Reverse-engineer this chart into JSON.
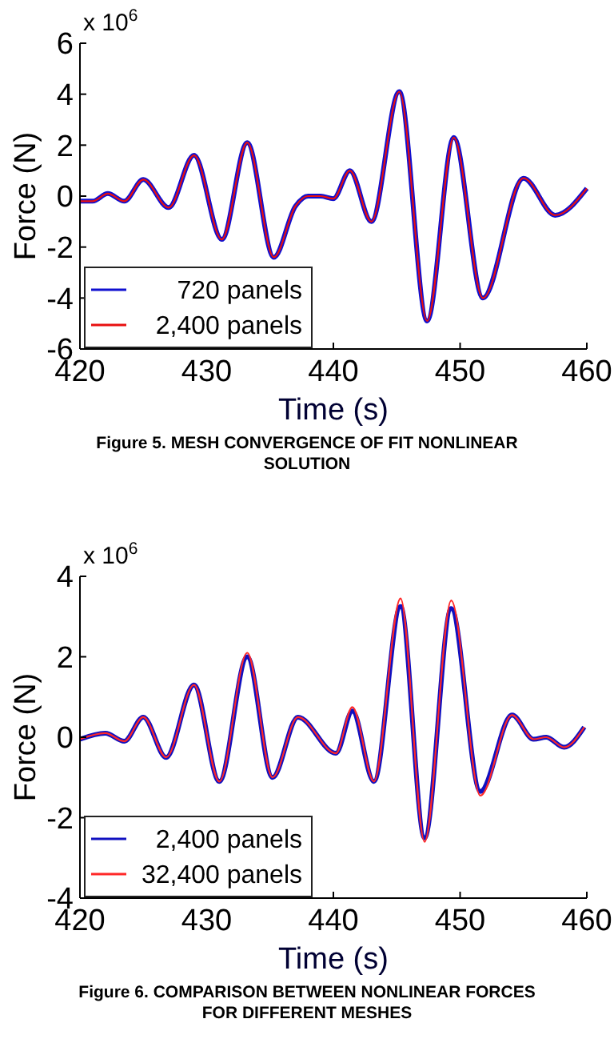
{
  "chart_data": [
    {
      "type": "line",
      "title": "Figure 5. MESH CONVERGENCE OF FIT NONLINEAR SOLUTION",
      "xlabel": "Time (s)",
      "ylabel": "Force (N)",
      "annotations": [
        "x 10$^{6}$"
      ],
      "xlim": [
        420,
        460
      ],
      "xticks": [
        420,
        430,
        440,
        450,
        460
      ],
      "ylim": [
        -6,
        6
      ],
      "yticks": [
        -6,
        -4,
        -2,
        0,
        2,
        4,
        6
      ],
      "legend": "bottom left",
      "grid": false,
      "line_style": "solid",
      "series": [
        {
          "name": "720 panels",
          "color": "#1010d0",
          "x": [
            420,
            421,
            422.2,
            423.5,
            425,
            427,
            429,
            431.2,
            433.2,
            435.3,
            437,
            438,
            439,
            440,
            441.3,
            443,
            445.2,
            447.4,
            449.5,
            451.8,
            455,
            457.5,
            460
          ],
          "values": [
            -0.2,
            -0.2,
            0.1,
            -0.2,
            0.65,
            -0.45,
            1.6,
            -1.7,
            2.1,
            -2.4,
            -0.4,
            0,
            0,
            -0.1,
            1.0,
            -1.0,
            4.1,
            -4.9,
            2.3,
            -4.0,
            0.7,
            -0.75,
            0.3
          ]
        },
        {
          "name": "2,400 panels",
          "color": "#e81010",
          "x": [
            420,
            421,
            422.2,
            423.5,
            425,
            427,
            429,
            431.2,
            433.2,
            435.3,
            437,
            438,
            439,
            440,
            441.3,
            443,
            445.2,
            447.4,
            449.5,
            451.8,
            455,
            457.5,
            460
          ],
          "values": [
            -0.2,
            -0.2,
            0.1,
            -0.2,
            0.65,
            -0.45,
            1.6,
            -1.7,
            2.1,
            -2.4,
            -0.4,
            0,
            0,
            -0.1,
            1.0,
            -1.0,
            4.1,
            -4.9,
            2.3,
            -4.0,
            0.7,
            -0.75,
            0.3
          ]
        }
      ]
    },
    {
      "type": "line",
      "title": "Figure 6. COMPARISON BETWEEN NONLINEAR FORCES FOR DIFFERENT MESHES",
      "xlabel": "Time (s)",
      "ylabel": "Force (N)",
      "annotations": [
        "x 10$^{6}$"
      ],
      "xlim": [
        420,
        460
      ],
      "xticks": [
        420,
        430,
        440,
        450,
        460
      ],
      "ylim": [
        -4,
        4
      ],
      "yticks": [
        -4,
        -2,
        0,
        2,
        4
      ],
      "legend": "bottom left",
      "grid": false,
      "line_style": "solid",
      "series": [
        {
          "name": "2,400 panels",
          "color": "#1010c0",
          "x": [
            420,
            422,
            423.5,
            425,
            426.8,
            429,
            431,
            433.2,
            435.2,
            437.2,
            440.2,
            441.5,
            443.2,
            445.3,
            447.2,
            449.3,
            451.6,
            454.1,
            455.8,
            456.8,
            458.2,
            459.8
          ],
          "values": [
            -0.05,
            0.1,
            -0.1,
            0.5,
            -0.5,
            1.3,
            -1.1,
            2.0,
            -1.0,
            0.5,
            -0.4,
            0.65,
            -1.1,
            3.25,
            -2.5,
            3.2,
            -1.35,
            0.55,
            -0.05,
            0.0,
            -0.25,
            0.25
          ]
        },
        {
          "name": "32,400 panels",
          "color": "#ff2828",
          "x": [
            420,
            422,
            423.5,
            425,
            426.8,
            429,
            431,
            433.2,
            435.2,
            437.2,
            440.2,
            441.5,
            443.2,
            445.3,
            447.2,
            449.3,
            451.6,
            454.1,
            455.8,
            456.8,
            458.2,
            459.8
          ],
          "values": [
            -0.05,
            0.1,
            -0.1,
            0.5,
            -0.5,
            1.3,
            -1.1,
            2.1,
            -1.0,
            0.5,
            -0.4,
            0.75,
            -1.1,
            3.45,
            -2.6,
            3.4,
            -1.45,
            0.55,
            -0.05,
            0.0,
            -0.25,
            0.25
          ]
        }
      ]
    }
  ]
}
